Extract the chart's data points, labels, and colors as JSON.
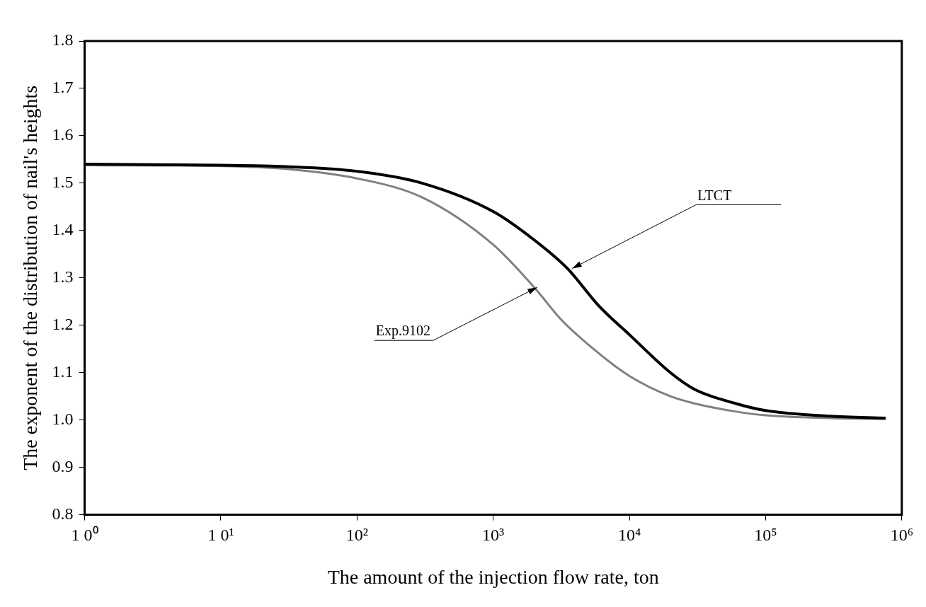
{
  "chart_data": {
    "type": "line",
    "xlabel": "The amount of the injection flow rate, ton",
    "ylabel": "The exponent of the distribution of nail's heights",
    "log": "x",
    "grid": false,
    "legend": false,
    "marker": "none",
    "line_style": "solid",
    "xlim": [
      1,
      1000000
    ],
    "xticks": [
      {
        "value": 1,
        "label": "1 0⁰"
      },
      {
        "value": 10,
        "label": "1 0¹"
      },
      {
        "value": 100,
        "label": "10²"
      },
      {
        "value": 1000,
        "label": "10³"
      },
      {
        "value": 10000,
        "label": "10⁴"
      },
      {
        "value": 100000,
        "label": "10⁵"
      },
      {
        "value": 1000000,
        "label": "10⁶"
      }
    ],
    "ylim": [
      0.8,
      1.8
    ],
    "yticks": [
      {
        "value": 0.8,
        "label": "0.8"
      },
      {
        "value": 0.9,
        "label": "0.9"
      },
      {
        "value": 1.0,
        "label": "1.0"
      },
      {
        "value": 1.1,
        "label": "1.1"
      },
      {
        "value": 1.2,
        "label": "1.2"
      },
      {
        "value": 1.3,
        "label": "1.3"
      },
      {
        "value": 1.4,
        "label": "1.4"
      },
      {
        "value": 1.5,
        "label": "1.5"
      },
      {
        "value": 1.6,
        "label": "1.6"
      },
      {
        "value": 1.7,
        "label": "1.7"
      },
      {
        "value": 1.8,
        "label": "1.8"
      }
    ],
    "series": [
      {
        "color": "#000000",
        "x": [
          1,
          10,
          30,
          100,
          300,
          1000,
          2000,
          3500,
          6000,
          10000,
          20000,
          30000,
          60000,
          100000,
          300000,
          760000
        ],
        "values": [
          1.54,
          1.538,
          1.535,
          1.525,
          1.5,
          1.44,
          1.38,
          1.32,
          1.24,
          1.18,
          1.1,
          1.065,
          1.035,
          1.02,
          1.008,
          1.004
        ]
      },
      {
        "color": "#808080",
        "x": [
          1,
          10,
          30,
          100,
          300,
          1000,
          2000,
          3200,
          6000,
          10000,
          20000,
          30000,
          60000,
          100000,
          300000,
          760000
        ],
        "values": [
          1.538,
          1.536,
          1.53,
          1.51,
          1.47,
          1.37,
          1.28,
          1.21,
          1.14,
          1.093,
          1.05,
          1.035,
          1.018,
          1.01,
          1.004,
          1.002
        ]
      }
    ],
    "annotations": [
      {
        "text": "LTCT",
        "x": 3800,
        "y": 1.32
      },
      {
        "text": "Exp.9102",
        "x": 2100,
        "y": 1.28
      }
    ]
  }
}
